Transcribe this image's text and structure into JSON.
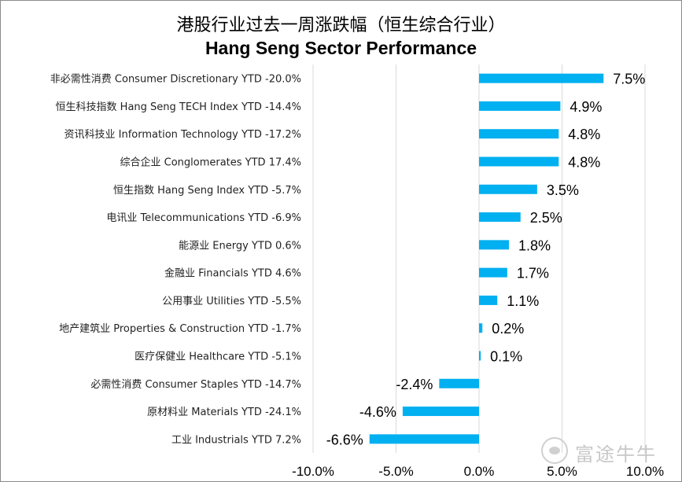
{
  "chart_data": {
    "type": "bar",
    "orientation": "horizontal",
    "title": "港股行业过去一周涨跌幅（恒生综合行业）",
    "subtitle": "Hang Seng Sector Performance",
    "categories": [
      "非必需性消费 Consumer Discretionary YTD -20.0%",
      "恒生科技指数 Hang Seng TECH Index YTD -14.4%",
      "资讯科技业 Information Technology YTD -17.2%",
      "综合企业 Conglomerates YTD 17.4%",
      "恒生指数 Hang Seng Index YTD -5.7%",
      "电讯业 Telecommunications YTD -6.9%",
      "能源业 Energy YTD 0.6%",
      "金融业 Financials YTD 4.6%",
      "公用事业 Utilities YTD -5.5%",
      "地产建筑业 Properties & Construction YTD -1.7%",
      "医疗保健业 Healthcare YTD -5.1%",
      "必需性消费 Consumer Staples YTD -14.7%",
      "原材料业 Materials YTD -24.1%",
      "工业 Industrials YTD 7.2%"
    ],
    "values": [
      7.5,
      4.9,
      4.8,
      4.8,
      3.5,
      2.5,
      1.8,
      1.7,
      1.1,
      0.2,
      0.1,
      -2.4,
      -4.6,
      -6.6
    ],
    "value_labels": [
      "7.5%",
      "4.9%",
      "4.8%",
      "4.8%",
      "3.5%",
      "2.5%",
      "1.8%",
      "1.7%",
      "1.1%",
      "0.2%",
      "0.1%",
      "-2.4%",
      "-4.6%",
      "-6.6%"
    ],
    "xlim": [
      -10,
      10
    ],
    "xticks": [
      -10,
      -5,
      0,
      5,
      10
    ],
    "xtick_labels": [
      "-10.0%",
      "-5.0%",
      "0.0%",
      "5.0%",
      "10.0%"
    ],
    "bar_color": "#00b0f0",
    "grid": true,
    "legend": "none"
  },
  "watermark": {
    "text": "富途牛牛",
    "icon": "futu-logo-icon"
  }
}
